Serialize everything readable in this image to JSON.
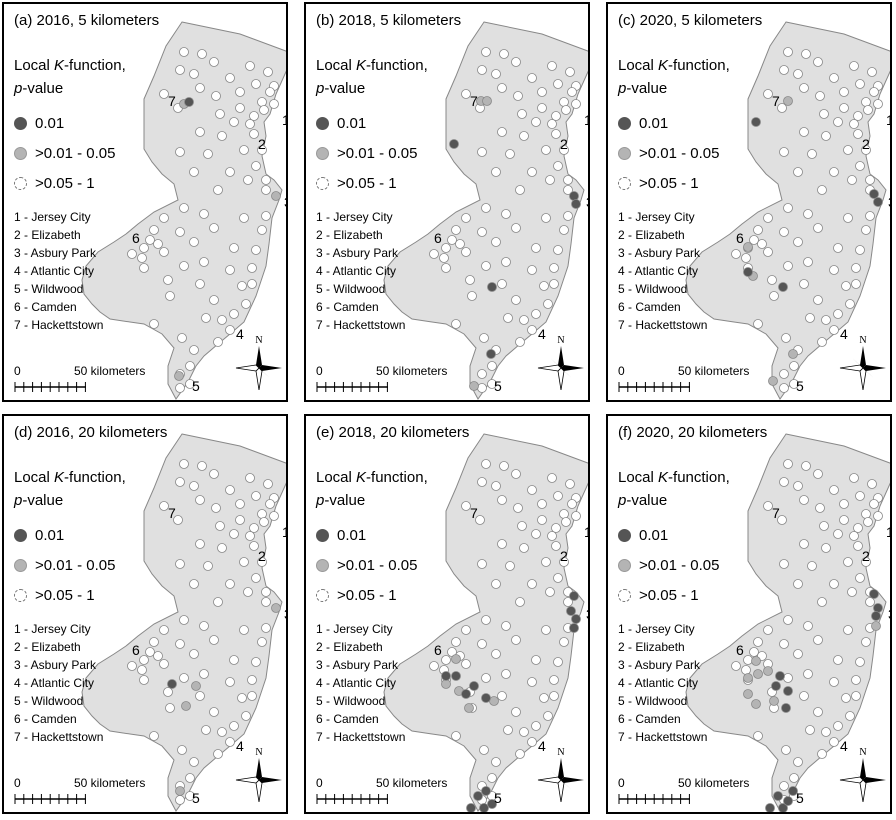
{
  "legend": {
    "heading_line1_prefix": "Local ",
    "heading_k": "K",
    "heading_line1_suffix": "-function,",
    "heading_p": "p",
    "heading_line2_suffix": "-value",
    "classes": [
      {
        "label": "0.01",
        "color": "#555555"
      },
      {
        "label": ">0.01 - 0.05",
        "color": "#b4b4b4"
      },
      {
        "label": ">0.05 - 1",
        "color": "#ffffff"
      }
    ]
  },
  "cities": [
    "1 - Jersey City",
    "2 - Elizabeth",
    "3 - Asbury Park",
    "4 - Atlantic City",
    "5 - Wildwood",
    "6 - Camden",
    "7 - Hackettstown"
  ],
  "city_numbers": [
    "1",
    "2",
    "3",
    "4",
    "5",
    "6",
    "7"
  ],
  "scale": {
    "zero": "0",
    "distance": "50 kilometers"
  },
  "compass_letter": "N",
  "colors": {
    "state_fill": "#e0e0e0",
    "border": "#000000"
  },
  "panels": [
    {
      "title": "(a) 2016, 5 kilometers",
      "significant": {
        "dark": [
          [
            185,
            98
          ]
        ],
        "mid": [
          [
            180,
            100
          ],
          [
            272,
            192
          ],
          [
            175,
            372
          ]
        ]
      }
    },
    {
      "title": "(b) 2018, 5 kilometers",
      "significant": {
        "dark": [
          [
            148,
            140
          ],
          [
            268,
            192
          ],
          [
            270,
            200
          ],
          [
            186,
            283
          ],
          [
            185,
            350
          ]
        ],
        "mid": [
          [
            175,
            97
          ],
          [
            181,
            97
          ],
          [
            168,
            382
          ]
        ]
      }
    },
    {
      "title": "(c) 2020, 5 kilometers",
      "significant": {
        "dark": [
          [
            148,
            118
          ],
          [
            266,
            190
          ],
          [
            270,
            198
          ],
          [
            175,
            283
          ],
          [
            140,
            268
          ]
        ],
        "mid": [
          [
            180,
            97
          ],
          [
            140,
            243
          ],
          [
            145,
            272
          ],
          [
            185,
            350
          ],
          [
            165,
            377
          ]
        ]
      }
    },
    {
      "title": "(d) 2016, 20 kilometers",
      "significant": {
        "dark": [
          [
            168,
            268
          ]
        ],
        "mid": [
          [
            272,
            192
          ],
          [
            192,
            270
          ],
          [
            182,
            290
          ],
          [
            176,
            375
          ]
        ]
      }
    },
    {
      "title": "(e) 2018, 20 kilometers",
      "significant": {
        "dark": [
          [
            268,
            180
          ],
          [
            265,
            195
          ],
          [
            270,
            203
          ],
          [
            268,
            212
          ],
          [
            140,
            260
          ],
          [
            150,
            260
          ],
          [
            168,
            270
          ],
          [
            160,
            278
          ],
          [
            180,
            282
          ],
          [
            172,
            380
          ],
          [
            180,
            375
          ],
          [
            165,
            392
          ],
          [
            178,
            392
          ],
          [
            186,
            388
          ]
        ],
        "mid": [
          [
            150,
            243
          ],
          [
            140,
            268
          ],
          [
            153,
            275
          ],
          [
            188,
            285
          ],
          [
            163,
            292
          ]
        ]
      }
    },
    {
      "title": "(f) 2020, 20 kilometers",
      "significant": {
        "dark": [
          [
            266,
            178
          ],
          [
            270,
            192
          ],
          [
            268,
            200
          ],
          [
            172,
            260
          ],
          [
            168,
            270
          ],
          [
            180,
            275
          ],
          [
            178,
            292
          ],
          [
            170,
            380
          ],
          [
            175,
            392
          ],
          [
            162,
            392
          ],
          [
            185,
            375
          ],
          [
            180,
            385
          ]
        ],
        "mid": [
          [
            140,
            262
          ],
          [
            150,
            258
          ],
          [
            160,
            255
          ],
          [
            140,
            278
          ],
          [
            148,
            288
          ],
          [
            166,
            285
          ],
          [
            148,
            245
          ],
          [
            268,
            210
          ]
        ]
      }
    }
  ]
}
